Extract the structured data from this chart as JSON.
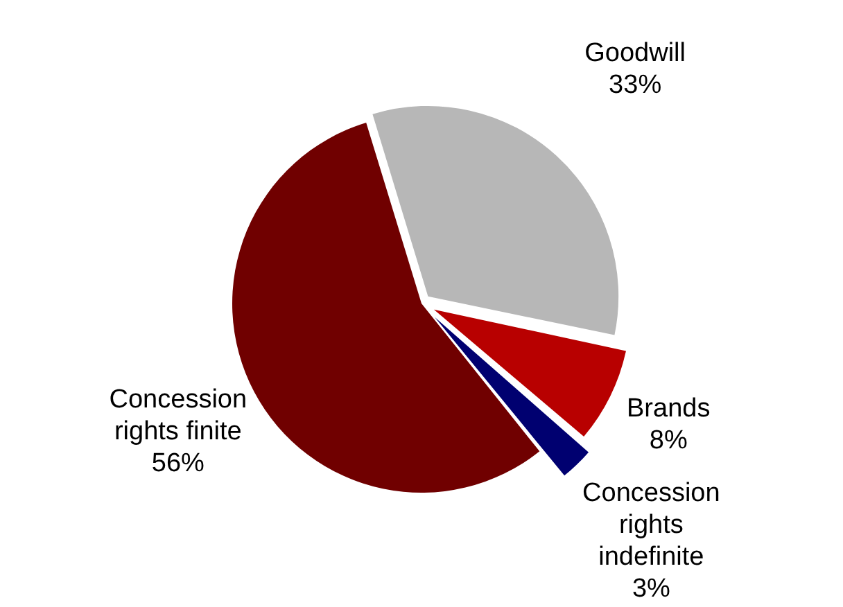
{
  "chart_data": {
    "type": "pie",
    "categories": [
      "Goodwill",
      "Brands",
      "Concession rights indefinite",
      "Concession rights finite"
    ],
    "values": [
      33,
      8,
      3,
      56
    ],
    "colors": [
      "#b7b7b7",
      "#b80000",
      "#000070",
      "#700000"
    ],
    "value_labels": [
      "33%",
      "8%",
      "3%",
      "56%"
    ],
    "legend": false
  }
}
